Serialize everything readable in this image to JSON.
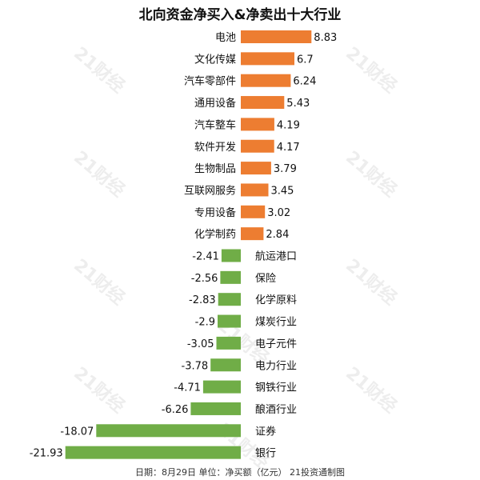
{
  "chart_data": {
    "type": "bar",
    "orientation": "horizontal",
    "title": "北向资金净买入&净卖出十大行业",
    "categories": [
      "电池",
      "文化传媒",
      "汽车零部件",
      "通用设备",
      "汽车整车",
      "软件开发",
      "生物制品",
      "互联网服务",
      "专用设备",
      "化学制药",
      "航运港口",
      "保险",
      "化学原料",
      "煤炭行业",
      "电子元件",
      "电力行业",
      "钢铁行业",
      "酿酒行业",
      "证券",
      "银行"
    ],
    "values": [
      8.83,
      6.7,
      6.24,
      5.43,
      4.19,
      4.17,
      3.79,
      3.45,
      3.02,
      2.84,
      -2.41,
      -2.56,
      -2.83,
      -2.9,
      -3.05,
      -3.78,
      -4.71,
      -6.26,
      -18.07,
      -21.93
    ],
    "value_labels": [
      "8.83",
      "6.7",
      "6.24",
      "5.43",
      "4.19",
      "4.17",
      "3.79",
      "3.45",
      "3.02",
      "2.84",
      "-2.41",
      "-2.56",
      "-2.83",
      "-2.9",
      "-3.05",
      "-3.78",
      "-4.71",
      "-6.26",
      "-18.07",
      "-21.93"
    ],
    "colors": {
      "positive": "#ED7D31",
      "negative": "#70AD47"
    },
    "grid": false,
    "legend": "none"
  },
  "footer": "日期：8月29日  单位：净买额（亿元）  21投资通制图",
  "watermark": "21财经"
}
